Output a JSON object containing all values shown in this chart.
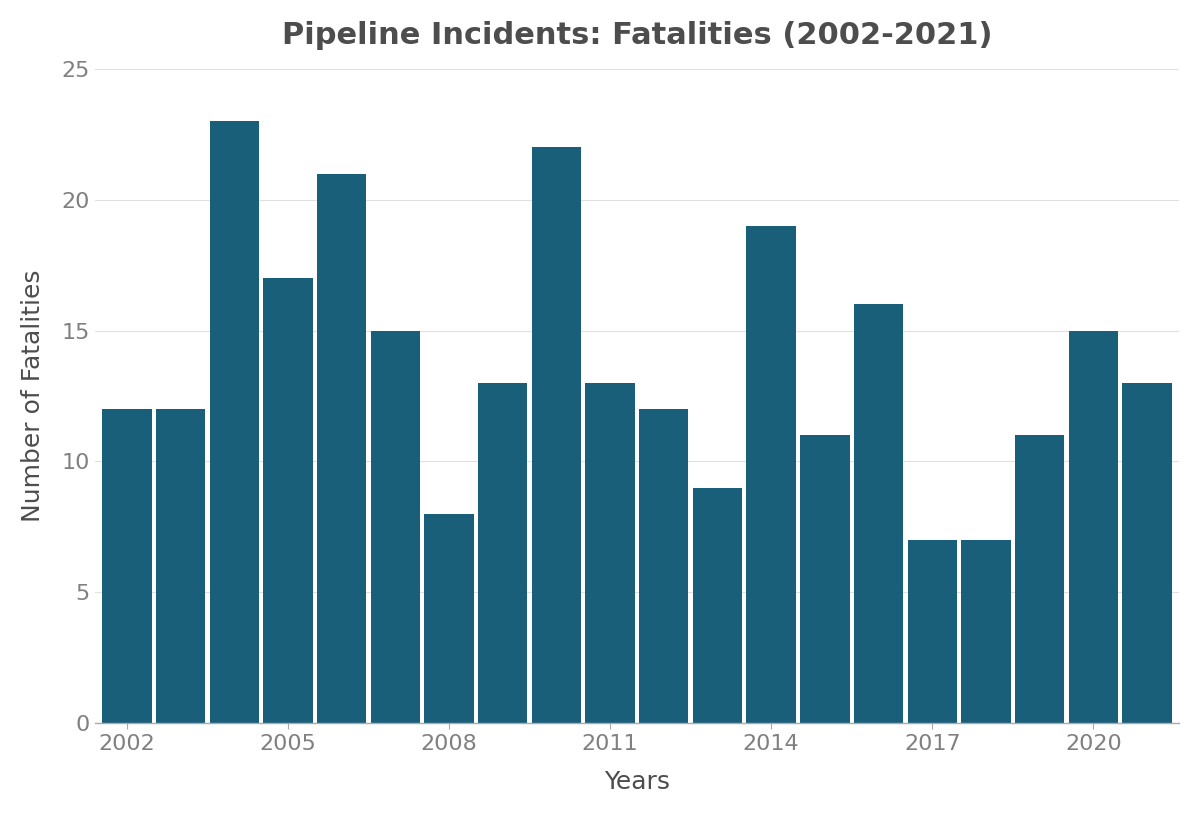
{
  "title": "Pipeline Incidents: Fatalities (2002-2021)",
  "xlabel": "Years",
  "ylabel": "Number of Fatalities",
  "years": [
    2002,
    2003,
    2004,
    2005,
    2006,
    2007,
    2008,
    2009,
    2010,
    2011,
    2012,
    2013,
    2014,
    2015,
    2016,
    2017,
    2018,
    2019,
    2020,
    2021
  ],
  "values": [
    12,
    12,
    23,
    17,
    21,
    15,
    8,
    13,
    22,
    13,
    12,
    9,
    19,
    11,
    16,
    7,
    7,
    11,
    15,
    13
  ],
  "bar_color": "#1a5f7a",
  "background_color": "#ffffff",
  "ylim": [
    0,
    25
  ],
  "yticks": [
    0,
    5,
    10,
    15,
    20,
    25
  ],
  "xtick_positions": [
    2002,
    2005,
    2008,
    2011,
    2014,
    2017,
    2020
  ],
  "xtick_labels": [
    "2002",
    "2005",
    "2008",
    "2011",
    "2014",
    "2017",
    "2020"
  ],
  "title_fontsize": 22,
  "axis_label_fontsize": 18,
  "tick_fontsize": 16,
  "title_color": "#4d4d4d",
  "axis_label_color": "#4d4d4d",
  "tick_color": "#808080"
}
